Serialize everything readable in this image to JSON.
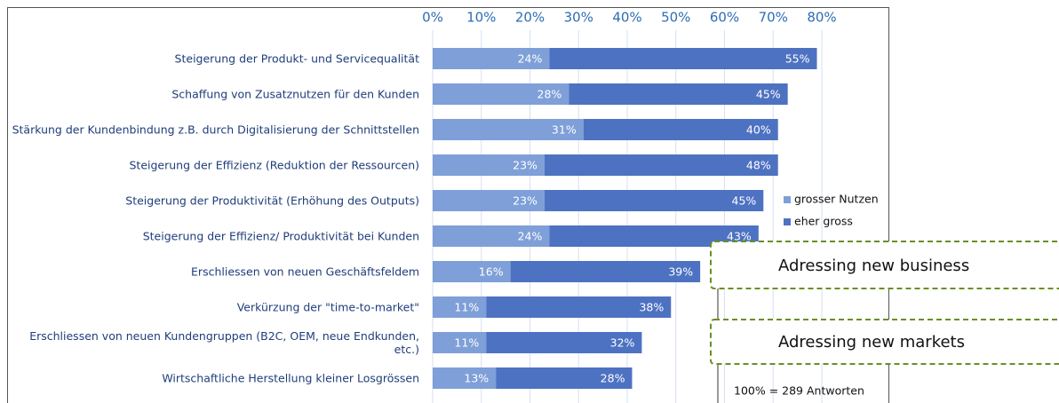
{
  "chart_data": {
    "type": "stacked-bar-horizontal",
    "categories": [
      "Steigerung der Produkt- und Servicequalität",
      "Schaffung von Zusatznutzen für den Kunden",
      "Stärkung der Kundenbindung z.B. durch Digitalisierung der Schnittstellen",
      "Steigerung der Effizienz (Reduktion der Ressourcen)",
      "Steigerung der Produktivität (Erhöhung des Outputs)",
      "Steigerung der Effizienz/ Produktivität bei Kunden",
      "Erschliessen von neuen Geschäftsfeldem",
      "Verkürzung der \"time-to-market\"",
      "Erschliessen von neuen Kundengruppen (B2C, OEM, neue Endkunden, etc.)",
      "Wirtschaftliche Herstellung kleiner Losgrössen"
    ],
    "series": [
      {
        "name": "grosser Nutzen",
        "color": "#7f9fd8",
        "values": [
          24,
          28,
          31,
          23,
          23,
          24,
          16,
          11,
          11,
          13
        ],
        "value_labels": [
          "24%",
          "28%",
          "31%",
          "23%",
          "23%",
          "24%",
          "16%",
          "11%",
          "11%",
          "13%"
        ]
      },
      {
        "name": "eher gross",
        "color": "#4e72c2",
        "values": [
          55,
          45,
          40,
          48,
          45,
          43,
          39,
          38,
          32,
          28
        ],
        "value_labels": [
          "55%",
          "45%",
          "40%",
          "48%",
          "45%",
          "43%",
          "39%",
          "38%",
          "32%",
          "28%"
        ]
      }
    ],
    "xlim": [
      0,
      80
    ],
    "xticks": [
      {
        "value": 0,
        "label": "0%"
      },
      {
        "value": 10,
        "label": "10%"
      },
      {
        "value": 20,
        "label": "20%"
      },
      {
        "value": 30,
        "label": "30%"
      },
      {
        "value": 40,
        "label": "40%"
      },
      {
        "value": 50,
        "label": "50%"
      },
      {
        "value": 60,
        "label": "60%"
      },
      {
        "value": 70,
        "label": "70%"
      },
      {
        "value": 80,
        "label": "80%"
      }
    ],
    "grid": true,
    "legend": "right",
    "annotations": [
      "Adressing new business",
      "Adressing new markets"
    ],
    "note": "100% = 289 Antworten"
  }
}
